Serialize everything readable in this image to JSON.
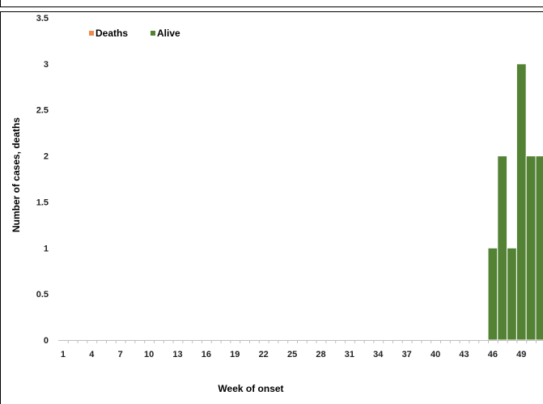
{
  "chart_data": {
    "type": "bar",
    "stacked": true,
    "title": "",
    "xlabel": "Week of onset",
    "ylabel": "Number of cases, deaths",
    "ylim": [
      0,
      3.5
    ],
    "y_ticks": [
      "0",
      "0.5",
      "1",
      "1.5",
      "2",
      "2.5",
      "3",
      "3.5"
    ],
    "x_tick_labels": [
      "1",
      "4",
      "7",
      "10",
      "13",
      "16",
      "19",
      "22",
      "25",
      "28",
      "31",
      "34",
      "37",
      "40",
      "43",
      "46",
      "49"
    ],
    "categories": [
      "1",
      "2",
      "3",
      "4",
      "5",
      "6",
      "7",
      "8",
      "9",
      "10",
      "11",
      "12",
      "13",
      "14",
      "15",
      "16",
      "17",
      "18",
      "19",
      "20",
      "21",
      "22",
      "23",
      "24",
      "25",
      "26",
      "27",
      "28",
      "29",
      "30",
      "31",
      "32",
      "33",
      "34",
      "35",
      "36",
      "37",
      "38",
      "39",
      "40",
      "41",
      "42",
      "43",
      "44",
      "45",
      "46",
      "47",
      "48",
      "49",
      "50",
      "51"
    ],
    "series": [
      {
        "name": "Deaths",
        "color": "#f08a4b",
        "values": [
          0,
          0,
          0,
          0,
          0,
          0,
          0,
          0,
          0,
          0,
          0,
          0,
          0,
          0,
          0,
          0,
          0,
          0,
          0,
          0,
          0,
          0,
          0,
          0,
          0,
          0,
          0,
          0,
          0,
          0,
          0,
          0,
          0,
          0,
          0,
          0,
          0,
          0,
          0,
          0,
          0,
          0,
          0,
          0,
          0,
          0,
          0,
          0,
          0,
          0,
          0
        ]
      },
      {
        "name": "Alive",
        "color": "#548235",
        "values": [
          0,
          0,
          0,
          0,
          0,
          0,
          0,
          0,
          0,
          0,
          0,
          0,
          0,
          0,
          0,
          0,
          0,
          0,
          0,
          0,
          0,
          0,
          0,
          0,
          0,
          0,
          0,
          0,
          0,
          0,
          0,
          0,
          0,
          0,
          0,
          0,
          0,
          0,
          0,
          0,
          0,
          0,
          0,
          0,
          0,
          1,
          2,
          1,
          3,
          2,
          2
        ]
      }
    ],
    "legend": "top-left",
    "grid": false
  }
}
